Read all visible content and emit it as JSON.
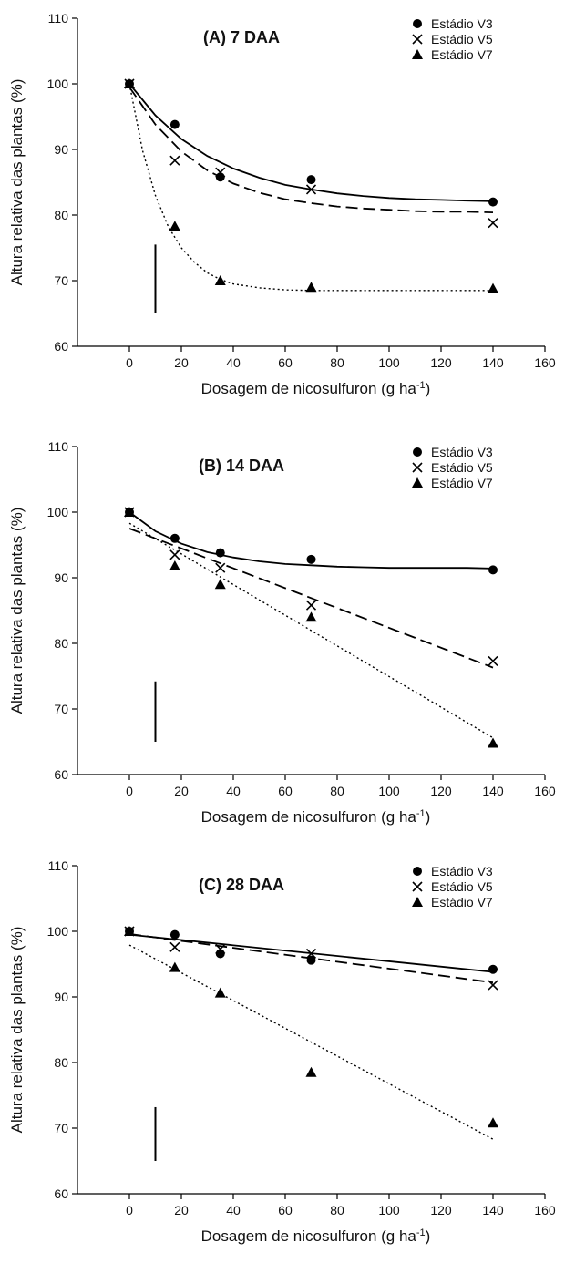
{
  "chart_data": [
    {
      "type": "scatter",
      "title": "(A) 7 DAA",
      "xlabel": "Dosagem de nicosulfuron (g ha",
      "xlabel_sup": "-1",
      "xlabel_end": ")",
      "ylabel": "Altura relativa das plantas (%)",
      "xlim": [
        -20,
        160
      ],
      "ylim": [
        60,
        110
      ],
      "xticks": [
        0,
        20,
        40,
        60,
        80,
        100,
        120,
        140,
        160
      ],
      "yticks": [
        60,
        70,
        80,
        90,
        100,
        110
      ],
      "legend_position": "top-right",
      "error_bar": {
        "x": 10,
        "y_low": 65,
        "y_high": 75.5
      },
      "series": [
        {
          "name": "Estádio V3",
          "marker": "circle",
          "line": "solid",
          "x": [
            0,
            17.5,
            35,
            70,
            140
          ],
          "y": [
            100,
            93.8,
            85.8,
            85.4,
            82.0
          ],
          "fit_x": [
            0,
            10,
            20,
            30,
            40,
            50,
            60,
            70,
            80,
            90,
            100,
            110,
            120,
            130,
            140
          ],
          "fit_y": [
            100,
            95.2,
            91.6,
            89.0,
            87.1,
            85.7,
            84.6,
            83.9,
            83.3,
            82.9,
            82.6,
            82.4,
            82.3,
            82.2,
            82.1
          ]
        },
        {
          "name": "Estádio V5",
          "marker": "x",
          "line": "dashed",
          "x": [
            0,
            17.5,
            35,
            70,
            140
          ],
          "y": [
            100,
            88.3,
            86.5,
            83.9,
            78.8
          ],
          "fit_x": [
            0,
            10,
            20,
            30,
            40,
            50,
            60,
            70,
            80,
            90,
            100,
            110,
            120,
            130,
            140
          ],
          "fit_y": [
            99.5,
            93.8,
            89.7,
            86.8,
            84.8,
            83.4,
            82.4,
            81.8,
            81.3,
            81.0,
            80.8,
            80.6,
            80.5,
            80.5,
            80.4
          ]
        },
        {
          "name": "Estádio V7",
          "marker": "triangle",
          "line": "dotted",
          "x": [
            0,
            17.5,
            35,
            70,
            140
          ],
          "y": [
            100,
            78.3,
            70.0,
            69.0,
            68.8
          ],
          "fit_x": [
            0,
            5,
            10,
            15,
            20,
            25,
            30,
            35,
            40,
            50,
            60,
            70,
            80,
            100,
            120,
            140
          ],
          "fit_y": [
            100,
            89.9,
            83.0,
            78.2,
            75.0,
            72.8,
            71.2,
            70.2,
            69.5,
            68.9,
            68.6,
            68.5,
            68.5,
            68.5,
            68.5,
            68.5
          ]
        }
      ]
    },
    {
      "type": "scatter",
      "title": "(B) 14 DAA",
      "xlabel": "Dosagem de nicosulfuron (g ha",
      "xlabel_sup": "-1",
      "xlabel_end": ")",
      "ylabel": "Altura relativa das plantas (%)",
      "xlim": [
        -20,
        160
      ],
      "ylim": [
        60,
        110
      ],
      "xticks": [
        0,
        20,
        40,
        60,
        80,
        100,
        120,
        140,
        160
      ],
      "yticks": [
        60,
        70,
        80,
        90,
        100,
        110
      ],
      "legend_position": "top-right",
      "error_bar": {
        "x": 10,
        "y_low": 65,
        "y_high": 74.2
      },
      "series": [
        {
          "name": "Estádio V3",
          "marker": "circle",
          "line": "solid",
          "x": [
            0,
            17.5,
            35,
            70,
            140
          ],
          "y": [
            100,
            96.0,
            93.8,
            92.8,
            91.2
          ],
          "fit_x": [
            0,
            10,
            20,
            30,
            40,
            50,
            60,
            70,
            80,
            90,
            100,
            110,
            120,
            130,
            140
          ],
          "fit_y": [
            100,
            97.1,
            95.2,
            93.9,
            93.1,
            92.5,
            92.1,
            91.9,
            91.7,
            91.6,
            91.5,
            91.5,
            91.5,
            91.5,
            91.4
          ]
        },
        {
          "name": "Estádio V5",
          "marker": "x",
          "line": "dashed",
          "x": [
            0,
            17.5,
            35,
            70,
            140
          ],
          "y": [
            100,
            93.5,
            91.5,
            85.8,
            77.3
          ],
          "fit_x": [
            0,
            140
          ],
          "fit_y": [
            97.5,
            76.3
          ]
        },
        {
          "name": "Estádio V7",
          "marker": "triangle",
          "line": "dotted",
          "x": [
            0,
            17.5,
            35,
            70,
            140
          ],
          "y": [
            100,
            91.8,
            89.0,
            84.0,
            64.8
          ],
          "fit_x": [
            0,
            140
          ],
          "fit_y": [
            98.3,
            65.6
          ]
        }
      ]
    },
    {
      "type": "scatter",
      "title": "(C) 28 DAA",
      "xlabel": "Dosagem de nicosulfuron (g ha",
      "xlabel_sup": "-1",
      "xlabel_end": ")",
      "ylabel": "Altura relativa das plantas (%)",
      "xlim": [
        -20,
        160
      ],
      "ylim": [
        60,
        110
      ],
      "xticks": [
        0,
        20,
        40,
        60,
        80,
        100,
        120,
        140,
        160
      ],
      "yticks": [
        60,
        70,
        80,
        90,
        100,
        110
      ],
      "legend_position": "top-right",
      "error_bar": {
        "x": 10,
        "y_low": 65,
        "y_high": 73.2
      },
      "series": [
        {
          "name": "Estádio V3",
          "marker": "circle",
          "line": "solid",
          "x": [
            0,
            17.5,
            35,
            70,
            140
          ],
          "y": [
            100,
            99.5,
            96.6,
            95.6,
            94.2
          ],
          "fit_x": [
            0,
            140
          ],
          "fit_y": [
            99.5,
            93.8
          ]
        },
        {
          "name": "Estádio V5",
          "marker": "x",
          "line": "dashed",
          "x": [
            0,
            17.5,
            35,
            70,
            140
          ],
          "y": [
            100,
            97.6,
            97.3,
            96.6,
            91.8
          ],
          "fit_x": [
            0,
            140
          ],
          "fit_y": [
            99.6,
            92.2
          ]
        },
        {
          "name": "Estádio V7",
          "marker": "triangle",
          "line": "dotted",
          "x": [
            0,
            17.5,
            35,
            70,
            140
          ],
          "y": [
            100,
            94.5,
            90.6,
            78.5,
            70.8
          ],
          "fit_x": [
            0,
            140
          ],
          "fit_y": [
            97.9,
            68.3
          ]
        }
      ]
    }
  ]
}
